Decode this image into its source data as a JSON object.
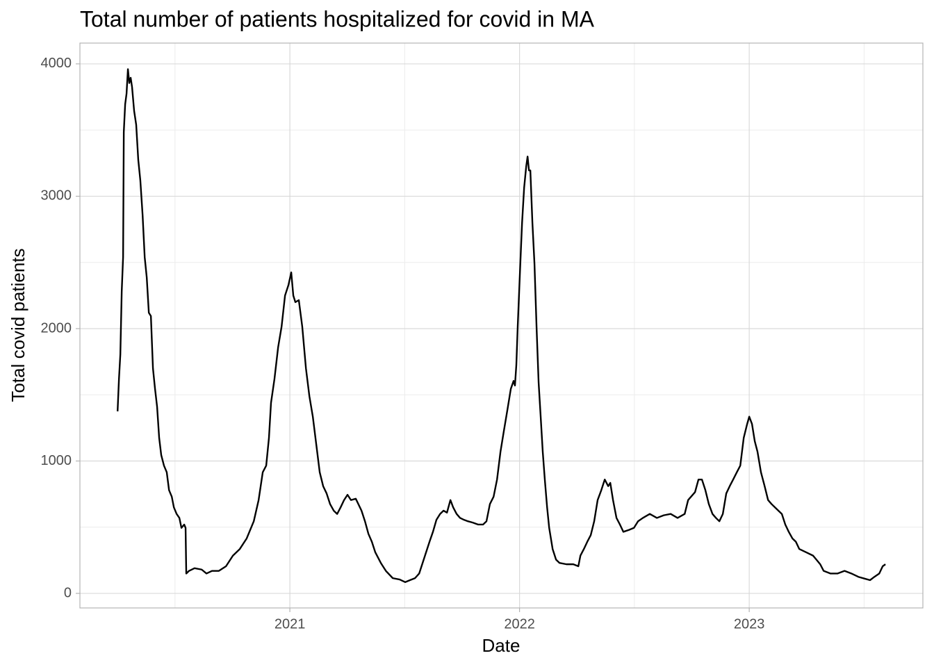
{
  "chart_data": {
    "type": "line",
    "title": "Total number of patients hospitalized for covid in MA",
    "x_label": "Date",
    "y_label": "Total covid patients",
    "xlim": [
      2020.086,
      2023.756
    ],
    "ylim": [
      -110,
      4157
    ],
    "xticks": [
      2021,
      2022,
      2023
    ],
    "yticks": [
      0,
      1000,
      2000,
      3000,
      4000
    ],
    "x_minor_ticks": [
      2020.5,
      2021.5,
      2022.5,
      2023.5
    ],
    "y_minor_ticks": [
      500,
      1500,
      2500,
      3500
    ],
    "grid": true,
    "series": [
      {
        "name": "Total covid patients",
        "color": "#000000",
        "x": [
          2020.25,
          2020.256,
          2020.262,
          2020.268,
          2020.274,
          2020.277,
          2020.283,
          2020.289,
          2020.295,
          2020.301,
          2020.307,
          2020.313,
          2020.322,
          2020.331,
          2020.34,
          2020.349,
          2020.359,
          2020.368,
          2020.377,
          2020.386,
          2020.395,
          2020.404,
          2020.413,
          2020.422,
          2020.431,
          2020.44,
          2020.452,
          2020.464,
          2020.474,
          2020.486,
          2020.495,
          2020.507,
          2020.519,
          2020.528,
          2020.54,
          2020.546,
          2020.549,
          2020.561,
          2020.585,
          2020.616,
          2020.637,
          2020.661,
          2020.691,
          2020.722,
          2020.752,
          2020.782,
          2020.812,
          2020.843,
          2020.864,
          2020.882,
          2020.897,
          2020.909,
          2020.918,
          2020.933,
          2020.949,
          2020.964,
          2020.979,
          2020.994,
          2021.006,
          2021.015,
          2021.024,
          2021.039,
          2021.054,
          2021.07,
          2021.085,
          2021.1,
          2021.115,
          2021.13,
          2021.145,
          2021.16,
          2021.175,
          2021.191,
          2021.206,
          2021.221,
          2021.236,
          2021.251,
          2021.266,
          2021.287,
          2021.312,
          2021.327,
          2021.342,
          2021.357,
          2021.372,
          2021.396,
          2021.418,
          2021.448,
          2021.478,
          2021.502,
          2021.523,
          2021.545,
          2021.563,
          2021.578,
          2021.593,
          2021.608,
          2021.623,
          2021.638,
          2021.654,
          2021.669,
          2021.684,
          2021.699,
          2021.711,
          2021.726,
          2021.741,
          2021.759,
          2021.775,
          2021.796,
          2021.82,
          2021.841,
          2021.856,
          2021.871,
          2021.887,
          2021.902,
          2021.917,
          2021.932,
          2021.947,
          2021.962,
          2021.974,
          2021.98,
          2021.986,
          2021.992,
          2022.002,
          2022.011,
          2022.02,
          2022.029,
          2022.035,
          2022.041,
          2022.047,
          2022.056,
          2022.065,
          2022.074,
          2022.083,
          2022.092,
          2022.101,
          2022.11,
          2022.12,
          2022.129,
          2022.144,
          2022.159,
          2022.174,
          2022.204,
          2022.234,
          2022.256,
          2022.265,
          2022.28,
          2022.295,
          2022.31,
          2022.325,
          2022.34,
          2022.356,
          2022.371,
          2022.386,
          2022.395,
          2022.407,
          2022.422,
          2022.437,
          2022.452,
          2022.477,
          2022.498,
          2022.516,
          2022.537,
          2022.567,
          2022.598,
          2022.628,
          2022.658,
          2022.688,
          2022.719,
          2022.734,
          2022.764,
          2022.779,
          2022.794,
          2022.809,
          2022.824,
          2022.84,
          2022.855,
          2022.87,
          2022.885,
          2022.9,
          2022.915,
          2022.93,
          2022.946,
          2022.961,
          2022.976,
          2022.991,
          2023.0,
          2023.012,
          2023.024,
          2023.036,
          2023.051,
          2023.067,
          2023.082,
          2023.097,
          2023.112,
          2023.127,
          2023.142,
          2023.157,
          2023.172,
          2023.188,
          2023.203,
          2023.218,
          2023.248,
          2023.278,
          2023.309,
          2023.324,
          2023.354,
          2023.384,
          2023.415,
          2023.445,
          2023.475,
          2023.505,
          2023.526,
          2023.545,
          2023.566,
          2023.581,
          2023.593
        ],
        "values": [
          1375,
          1620,
          1805,
          2280,
          2540,
          3485,
          3695,
          3775,
          3960,
          3855,
          3895,
          3825,
          3645,
          3540,
          3275,
          3120,
          2855,
          2540,
          2385,
          2120,
          2095,
          1700,
          1545,
          1410,
          1175,
          1045,
          965,
          915,
          780,
          730,
          650,
          600,
          570,
          495,
          520,
          495,
          150,
          170,
          190,
          180,
          150,
          170,
          170,
          205,
          285,
          335,
          415,
          545,
          705,
          915,
          965,
          1175,
          1440,
          1620,
          1860,
          2015,
          2250,
          2330,
          2425,
          2250,
          2200,
          2215,
          2015,
          1700,
          1490,
          1335,
          1125,
          915,
          810,
          755,
          675,
          625,
          600,
          650,
          705,
          745,
          705,
          715,
          625,
          545,
          450,
          390,
          310,
          230,
          170,
          115,
          105,
          85,
          100,
          115,
          150,
          230,
          310,
          390,
          465,
          555,
          600,
          625,
          610,
          705,
          650,
          600,
          570,
          555,
          545,
          535,
          520,
          520,
          545,
          675,
          730,
          860,
          1070,
          1230,
          1385,
          1545,
          1605,
          1570,
          1725,
          2015,
          2435,
          2800,
          3065,
          3225,
          3300,
          3195,
          3195,
          2800,
          2490,
          2015,
          1595,
          1335,
          1070,
          860,
          650,
          495,
          335,
          255,
          230,
          220,
          220,
          205,
          285,
          335,
          390,
          440,
          545,
          705,
          780,
          860,
          810,
          835,
          705,
          570,
          520,
          465,
          480,
          495,
          545,
          570,
          600,
          570,
          590,
          600,
          570,
          600,
          705,
          765,
          860,
          860,
          780,
          675,
          600,
          570,
          545,
          600,
          755,
          810,
          860,
          915,
          965,
          1175,
          1280,
          1335,
          1280,
          1150,
          1070,
          915,
          810,
          705,
          675,
          650,
          625,
          600,
          520,
          465,
          415,
          390,
          335,
          310,
          285,
          220,
          170,
          150,
          150,
          170,
          150,
          125,
          110,
          100,
          125,
          150,
          205,
          220
        ]
      }
    ]
  }
}
